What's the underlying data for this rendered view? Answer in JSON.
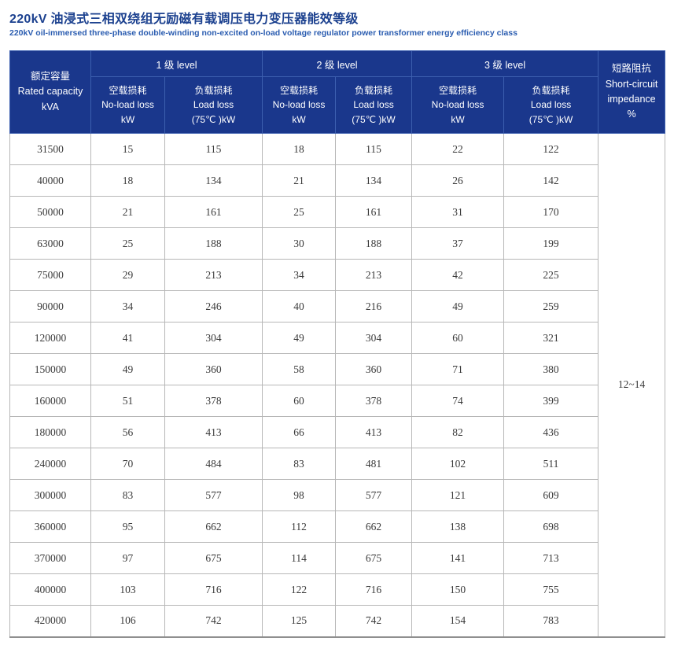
{
  "page": {
    "title": "220kV 油浸式三相双绕组无励磁有载调压电力变压器能效等级",
    "subtitle": "220kV oil-immersed three-phase double-winding non-excited on-load voltage regulator power transformer energy efficiency class"
  },
  "colors": {
    "header_bg": "#1a378c",
    "header_border": "#3c5faf",
    "title_color": "#1c418f",
    "subtitle_color": "#2a5cb0",
    "body_border": "#b7b7b7",
    "body_text": "#3a3a3a",
    "table_bottom_border": "#8f8f8f"
  },
  "table": {
    "headers": {
      "capacity": "额定容量\nRated capacity\nkVA",
      "groups": [
        "1 级 level",
        "2 级 level",
        "3 级 level"
      ],
      "noload": "空载损耗\nNo-load loss\nkW",
      "load": "负载损耗\nLoad loss\n(75℃ )kW",
      "impedance": "短路阻抗\nShort-circuit\nimpedance\n%"
    },
    "impedance_value": "12~14",
    "rows": [
      [
        "31500",
        "15",
        "115",
        "18",
        "115",
        "22",
        "122"
      ],
      [
        "40000",
        "18",
        "134",
        "21",
        "134",
        "26",
        "142"
      ],
      [
        "50000",
        "21",
        "161",
        "25",
        "161",
        "31",
        "170"
      ],
      [
        "63000",
        "25",
        "188",
        "30",
        "188",
        "37",
        "199"
      ],
      [
        "75000",
        "29",
        "213",
        "34",
        "213",
        "42",
        "225"
      ],
      [
        "90000",
        "34",
        "246",
        "40",
        "216",
        "49",
        "259"
      ],
      [
        "120000",
        "41",
        "304",
        "49",
        "304",
        "60",
        "321"
      ],
      [
        "150000",
        "49",
        "360",
        "58",
        "360",
        "71",
        "380"
      ],
      [
        "160000",
        "51",
        "378",
        "60",
        "378",
        "74",
        "399"
      ],
      [
        "180000",
        "56",
        "413",
        "66",
        "413",
        "82",
        "436"
      ],
      [
        "240000",
        "70",
        "484",
        "83",
        "481",
        "102",
        "511"
      ],
      [
        "300000",
        "83",
        "577",
        "98",
        "577",
        "121",
        "609"
      ],
      [
        "360000",
        "95",
        "662",
        "112",
        "662",
        "138",
        "698"
      ],
      [
        "370000",
        "97",
        "675",
        "114",
        "675",
        "141",
        "713"
      ],
      [
        "400000",
        "103",
        "716",
        "122",
        "716",
        "150",
        "755"
      ],
      [
        "420000",
        "106",
        "742",
        "125",
        "742",
        "154",
        "783"
      ]
    ]
  }
}
